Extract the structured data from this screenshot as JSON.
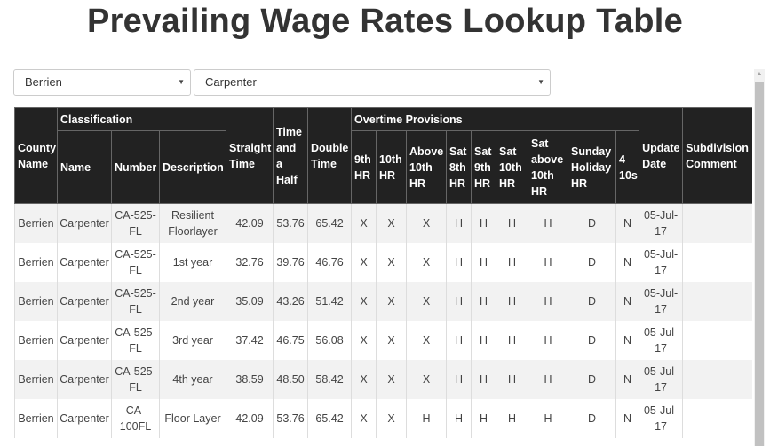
{
  "page": {
    "title": "Prevailing Wage Rates Lookup Table"
  },
  "filters": {
    "county": "Berrien",
    "classification": "Carpenter"
  },
  "table": {
    "headers": {
      "county_name": "County Name",
      "classification_group": "Classification",
      "name": "Name",
      "number": "Number",
      "description": "Description",
      "straight_time": "Straight Time",
      "time_and_a_half": "Time and a Half",
      "double_time": "Double Time",
      "overtime_group": "Overtime Provisions",
      "ot_9th_hr": "9th HR",
      "ot_10th_hr": "10th HR",
      "ot_above_10th_hr": "Above 10th HR",
      "ot_sat_8th_hr": "Sat 8th HR",
      "ot_sat_9th_hr": "Sat 9th HR",
      "ot_sat_10th_hr": "Sat 10th HR",
      "ot_sat_above_10th_hr": "Sat above 10th HR",
      "ot_sunday_holiday_hr": "Sunday Holiday HR",
      "ot_4_10s": "4 10s",
      "update_date": "Update Date",
      "subdivision_comment": "Subdivision Comment"
    },
    "rows": [
      {
        "county": "Berrien",
        "name": "Carpenter",
        "number": "CA-525-FL",
        "description": "Resilient Floorlayer",
        "straight": "42.09",
        "half": "53.76",
        "double": "65.42",
        "h9": "X",
        "h10": "X",
        "above10": "X",
        "sat8": "H",
        "sat9": "H",
        "sat10": "H",
        "satabove10": "H",
        "sunday": "D",
        "fourtens": "N",
        "updated": "05-Jul-17",
        "comment": ""
      },
      {
        "county": "Berrien",
        "name": "Carpenter",
        "number": "CA-525-FL",
        "description": "1st year",
        "straight": "32.76",
        "half": "39.76",
        "double": "46.76",
        "h9": "X",
        "h10": "X",
        "above10": "X",
        "sat8": "H",
        "sat9": "H",
        "sat10": "H",
        "satabove10": "H",
        "sunday": "D",
        "fourtens": "N",
        "updated": "05-Jul-17",
        "comment": ""
      },
      {
        "county": "Berrien",
        "name": "Carpenter",
        "number": "CA-525-FL",
        "description": "2nd year",
        "straight": "35.09",
        "half": "43.26",
        "double": "51.42",
        "h9": "X",
        "h10": "X",
        "above10": "X",
        "sat8": "H",
        "sat9": "H",
        "sat10": "H",
        "satabove10": "H",
        "sunday": "D",
        "fourtens": "N",
        "updated": "05-Jul-17",
        "comment": ""
      },
      {
        "county": "Berrien",
        "name": "Carpenter",
        "number": "CA-525-FL",
        "description": "3rd year",
        "straight": "37.42",
        "half": "46.75",
        "double": "56.08",
        "h9": "X",
        "h10": "X",
        "above10": "X",
        "sat8": "H",
        "sat9": "H",
        "sat10": "H",
        "satabove10": "H",
        "sunday": "D",
        "fourtens": "N",
        "updated": "05-Jul-17",
        "comment": ""
      },
      {
        "county": "Berrien",
        "name": "Carpenter",
        "number": "CA-525-FL",
        "description": "4th year",
        "straight": "38.59",
        "half": "48.50",
        "double": "58.42",
        "h9": "X",
        "h10": "X",
        "above10": "X",
        "sat8": "H",
        "sat9": "H",
        "sat10": "H",
        "satabove10": "H",
        "sunday": "D",
        "fourtens": "N",
        "updated": "05-Jul-17",
        "comment": ""
      },
      {
        "county": "Berrien",
        "name": "Carpenter",
        "number": "CA-100FL",
        "description": "Floor Layer",
        "straight": "42.09",
        "half": "53.76",
        "double": "65.42",
        "h9": "X",
        "h10": "X",
        "above10": "H",
        "sat8": "H",
        "sat9": "H",
        "sat10": "H",
        "satabove10": "H",
        "sunday": "D",
        "fourtens": "N",
        "updated": "05-Jul-17",
        "comment": ""
      }
    ]
  },
  "icons": {
    "select_caret": "caret-down-icon",
    "scroll_up": "scroll-up-arrow-icon"
  }
}
